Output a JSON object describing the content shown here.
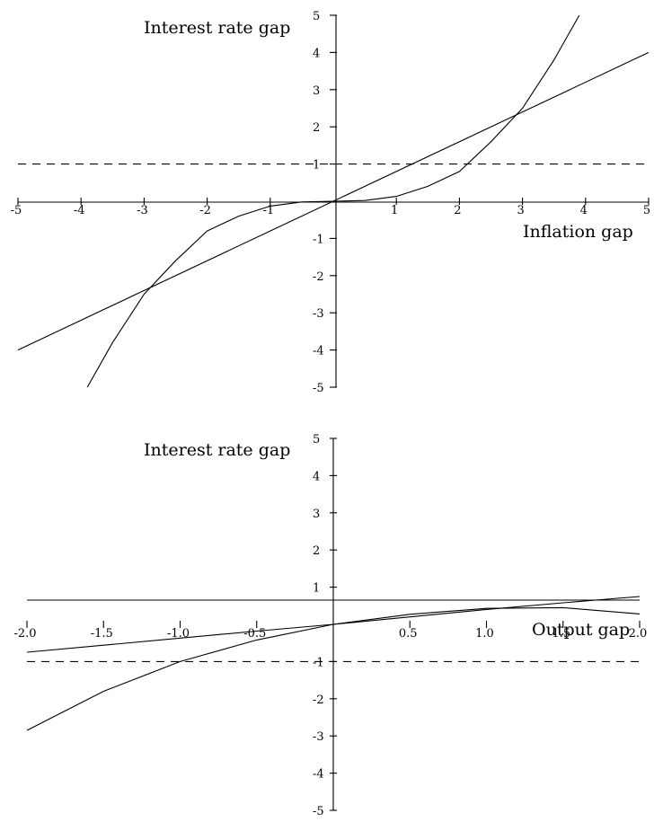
{
  "chart_data": [
    {
      "type": "line",
      "title": "",
      "xlabel": "Inflation gap",
      "ylabel": "Interest rate gap",
      "xlim": [
        -5,
        5
      ],
      "ylim": [
        -5,
        5
      ],
      "x_ticks": [
        -5,
        -4,
        -3,
        -2,
        -1,
        1,
        2,
        3,
        4,
        5
      ],
      "y_ticks": [
        -5,
        -4,
        -3,
        -2,
        -1,
        1,
        2,
        3,
        4,
        5
      ],
      "x_tick_labels": [
        "-5",
        "-4",
        "-3",
        "-2",
        "-1",
        "1",
        "2",
        "3",
        "4",
        "5"
      ],
      "y_tick_labels": [
        "-5",
        "-4",
        "-3",
        "-2",
        "-1",
        "1",
        "2",
        "3",
        "4",
        "5"
      ],
      "grid": false,
      "series": [
        {
          "x": [
            -5,
            5
          ],
          "y": [
            -4,
            4
          ]
        },
        {
          "x": [
            -3.9,
            -3.5,
            -3,
            -2.5,
            -2,
            -1.5,
            -1,
            -0.5,
            0,
            0.5,
            1,
            1.5,
            2,
            2.5,
            3,
            3.5,
            3.9
          ],
          "y": [
            -5,
            -3.8,
            -2.5,
            -1.6,
            -0.8,
            -0.4,
            -0.13,
            -0.02,
            0,
            0.02,
            0.13,
            0.4,
            0.8,
            1.6,
            2.5,
            3.8,
            5
          ]
        },
        {
          "x": [
            -5,
            5
          ],
          "y": [
            1,
            1
          ],
          "style": "dashed"
        }
      ]
    },
    {
      "type": "line",
      "title": "",
      "xlabel": "Output gap",
      "ylabel": "Interest rate gap",
      "xlim": [
        -2,
        2
      ],
      "ylim": [
        -5,
        5
      ],
      "x_ticks": [
        -2,
        -1.5,
        -1,
        -0.5,
        0.5,
        1,
        1.5,
        2
      ],
      "y_ticks": [
        -5,
        -4,
        -3,
        -2,
        -1,
        1,
        2,
        3,
        4,
        5
      ],
      "x_tick_labels": [
        "-2.0",
        "-1.5",
        "-1.0",
        "-0.5",
        "0.5",
        "1.0",
        "1.5",
        "2.0"
      ],
      "y_tick_labels": [
        "-5",
        "-4",
        "-3",
        "-2",
        "-1",
        "1",
        "2",
        "3",
        "4",
        "5"
      ],
      "grid": false,
      "series": [
        {
          "x": [
            -2,
            -1.5,
            -1,
            -0.5,
            0,
            0.5,
            1,
            1.5,
            2
          ],
          "y": [
            -0.75,
            -0.56,
            -0.37,
            -0.18,
            0,
            0.2,
            0.4,
            0.58,
            0.75
          ]
        },
        {
          "x": [
            -2,
            -1.5,
            -1,
            -0.5,
            0,
            0.5,
            1,
            1.5,
            2
          ],
          "y": [
            -2.85,
            -1.8,
            -1.0,
            -0.42,
            0,
            0.27,
            0.43,
            0.45,
            0.28
          ]
        },
        {
          "x": [
            -2,
            2
          ],
          "y": [
            -1,
            -1
          ],
          "style": "dashed"
        }
      ]
    }
  ]
}
